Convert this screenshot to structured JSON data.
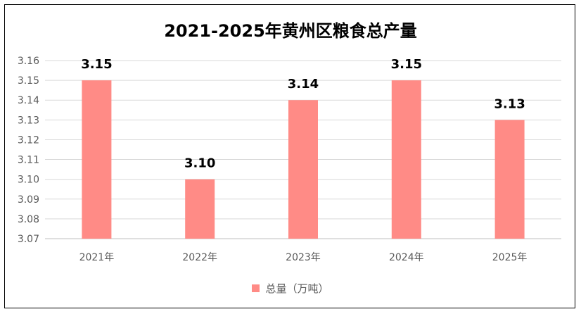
{
  "chart_data": {
    "type": "bar",
    "title": "2021-2025年黄州区粮食总产量",
    "categories": [
      "2021年",
      "2022年",
      "2023年",
      "2024年",
      "2025年"
    ],
    "series": [
      {
        "name": "总量（万吨）",
        "values": [
          3.15,
          3.1,
          3.14,
          3.15,
          3.13
        ],
        "color": "#FF8B86"
      }
    ],
    "data_labels": [
      "3.15",
      "3.10",
      "3.14",
      "3.15",
      "3.13"
    ],
    "y_ticks": [
      "3.07",
      "3.08",
      "3.09",
      "3.10",
      "3.11",
      "3.12",
      "3.13",
      "3.14",
      "3.15",
      "3.16"
    ],
    "ylim": [
      3.07,
      3.16
    ],
    "grid": true,
    "legend_position": "bottom",
    "xlabel": "",
    "ylabel": ""
  }
}
